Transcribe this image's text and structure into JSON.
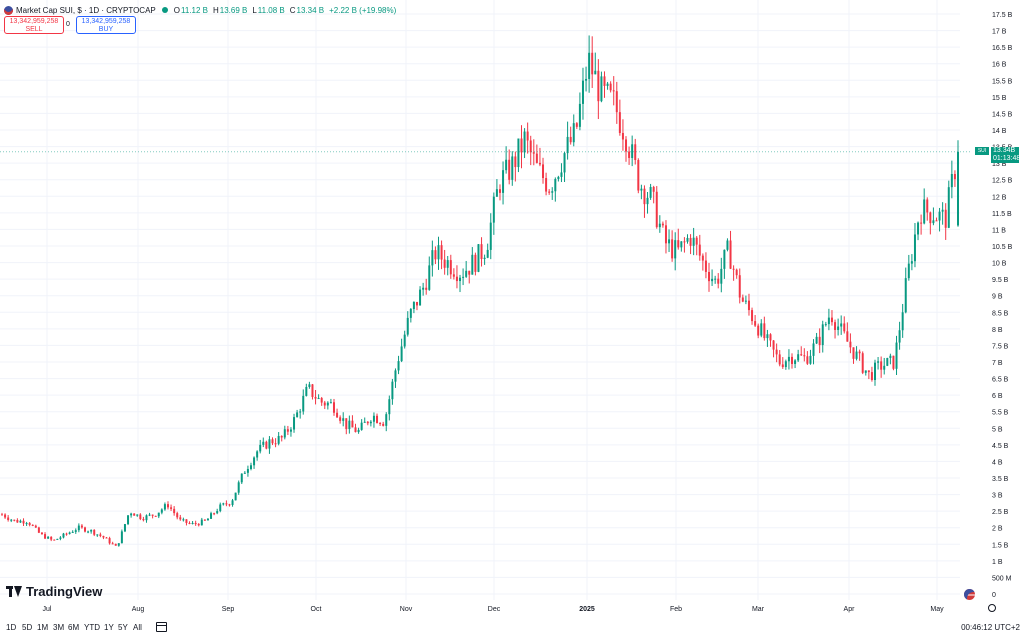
{
  "header": {
    "title": "Market Cap SUI, $ · 1D · CRYPTOCAP",
    "ohlc": [
      {
        "label": "O",
        "value": "11.12 B"
      },
      {
        "label": "H",
        "value": "13.69 B"
      },
      {
        "label": "L",
        "value": "11.08 B"
      },
      {
        "label": "C",
        "value": "13.34 B"
      }
    ],
    "change": "+2.22 B (+19.98%)"
  },
  "trade": {
    "sell_value": "13,342,959,258",
    "sell_label": "SELL",
    "spread": "0",
    "buy_value": "13,342,959,258",
    "buy_label": "BUY"
  },
  "price_tag": {
    "symbol": "SUI",
    "price": "13.34B",
    "countdown": "01:13:48"
  },
  "logo": "TradingView",
  "range_buttons": [
    "1D",
    "5D",
    "1M",
    "3M",
    "6M",
    "YTD",
    "1Y",
    "5Y",
    "All"
  ],
  "clock": "00:46:12 UTC+2",
  "colors": {
    "up": "#089981",
    "down": "#f23645",
    "grid": "#f0f3fa"
  },
  "chart_data": {
    "type": "candlestick",
    "title": "",
    "x_ticks": [
      "Jul",
      "Aug",
      "Sep",
      "Oct",
      "Nov",
      "Dec",
      "2025",
      "Feb",
      "Mar",
      "Apr",
      "May"
    ],
    "y_ticks": [
      "17.5 B",
      "17 B",
      "16.5 B",
      "16 B",
      "15.5 B",
      "15 B",
      "14.5 B",
      "14 B",
      "13.5 B",
      "13 B",
      "12.5 B",
      "12 B",
      "11.5 B",
      "11 B",
      "10.5 B",
      "10 B",
      "9.5 B",
      "9 B",
      "8.5 B",
      "8 B",
      "7.5 B",
      "7 B",
      "6.5 B",
      "6 B",
      "5.5 B",
      "5 B",
      "4.5 B",
      "4 B",
      "3.5 B",
      "3 B",
      "2.5 B",
      "2 B",
      "1.5 B",
      "1 B",
      "500 M",
      "0"
    ],
    "ylim": [
      0,
      17.5
    ],
    "unit": "B",
    "closes_by_week": [
      2.4,
      2.2,
      2.2,
      1.8,
      1.6,
      1.8,
      2.0,
      1.9,
      1.7,
      1.4,
      2.5,
      2.3,
      2.4,
      2.7,
      2.2,
      2.1,
      2.2,
      2.6,
      2.8,
      3.7,
      4.3,
      4.6,
      4.7,
      5.3,
      6.2,
      5.8,
      5.7,
      5.1,
      4.9,
      5.4,
      5.2,
      7.0,
      8.4,
      9.2,
      10.3,
      10.0,
      9.7,
      10.0,
      10.5,
      12.4,
      12.9,
      13.7,
      12.8,
      12.3,
      13.2,
      13.9,
      16.1,
      15.1,
      14.8,
      13.8,
      12.4,
      11.9,
      10.6,
      10.3,
      10.8,
      10.0,
      9.4,
      10.4,
      8.9,
      8.3,
      7.6,
      7.0,
      7.2,
      7.1,
      7.6,
      8.5,
      7.8,
      7.2,
      6.6,
      6.9,
      7.0,
      9.5,
      11.6,
      11.5,
      11.3,
      13.34
    ],
    "last_candle": {
      "open": 11.12,
      "high": 13.69,
      "low": 11.08,
      "close": 13.34
    }
  }
}
